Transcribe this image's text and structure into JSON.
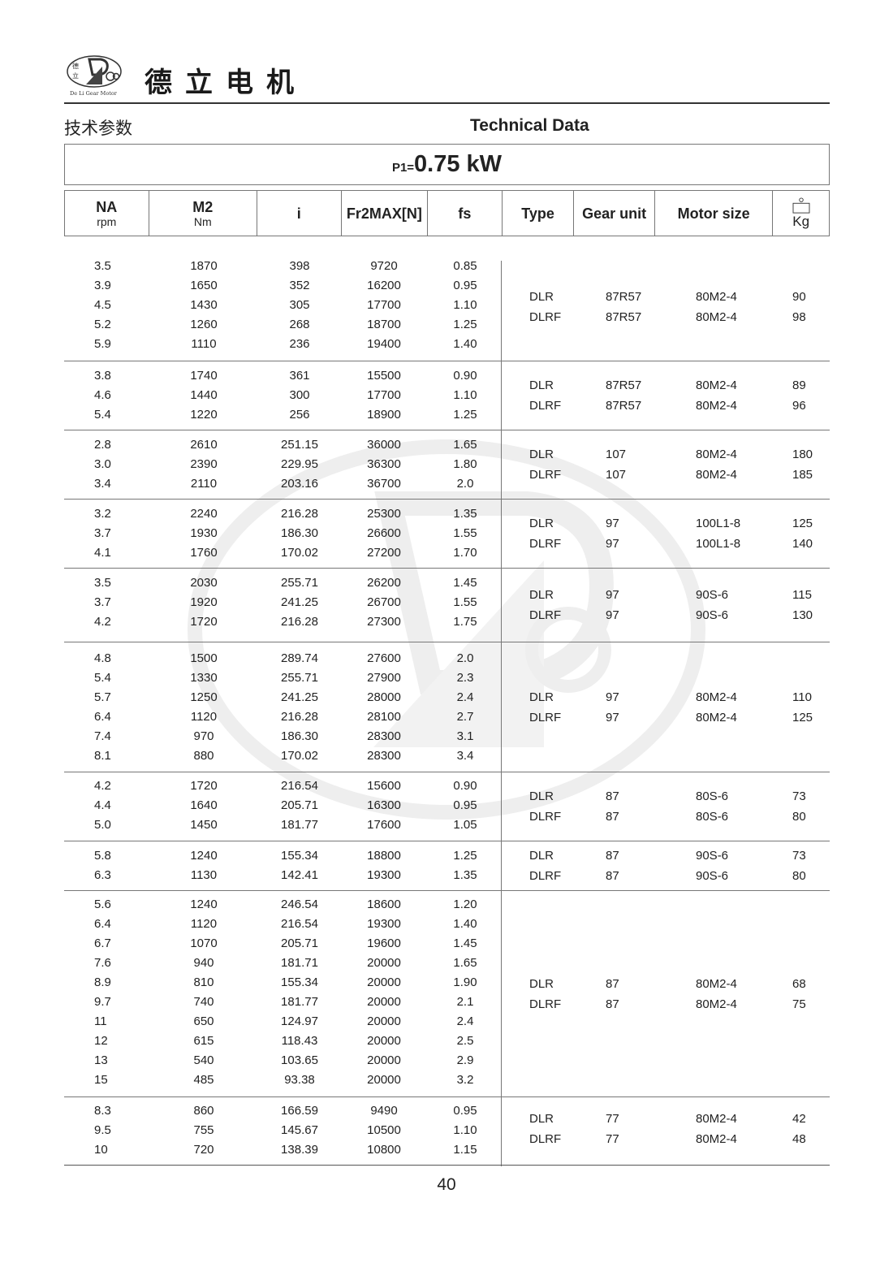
{
  "header": {
    "brand_cn": "德立电机",
    "logo_text": "De Li Gear Motor",
    "logo_chars": "德立"
  },
  "titles": {
    "cn": "技术参数",
    "en": "Technical Data"
  },
  "power": {
    "label": "P1=",
    "value": "0.75 kW"
  },
  "columns": {
    "na": "NA",
    "na_unit": "rpm",
    "m2": "M2",
    "m2_unit": "Nm",
    "i": "i",
    "fr": "Fr2MAX[N]",
    "fs": "fs",
    "type": "Type",
    "gear": "Gear unit",
    "motor": "Motor size",
    "kg": "Kg"
  },
  "groups": [
    {
      "rows": [
        [
          "3.5",
          "1870",
          "398",
          "9720",
          "0.85"
        ],
        [
          "3.9",
          "1650",
          "352",
          "16200",
          "0.95"
        ],
        [
          "4.5",
          "1430",
          "305",
          "17700",
          "1.10"
        ],
        [
          "5.2",
          "1260",
          "268",
          "18700",
          "1.25"
        ],
        [
          "5.9",
          "1110",
          "236",
          "19400",
          "1.40"
        ]
      ],
      "variants": [
        [
          "DLR",
          "87R57",
          "80M2-4",
          "90"
        ],
        [
          "DLRF",
          "87R57",
          "80M2-4",
          "98"
        ]
      ]
    },
    {
      "rows": [
        [
          "3.8",
          "1740",
          "361",
          "15500",
          "0.90"
        ],
        [
          "4.6",
          "1440",
          "300",
          "17700",
          "1.10"
        ],
        [
          "5.4",
          "1220",
          "256",
          "18900",
          "1.25"
        ]
      ],
      "variants": [
        [
          "DLR",
          "87R57",
          "80M2-4",
          "89"
        ],
        [
          "DLRF",
          "87R57",
          "80M2-4",
          "96"
        ]
      ]
    },
    {
      "rows": [
        [
          "2.8",
          "2610",
          "251.15",
          "36000",
          "1.65"
        ],
        [
          "3.0",
          "2390",
          "229.95",
          "36300",
          "1.80"
        ],
        [
          "3.4",
          "2110",
          "203.16",
          "36700",
          "2.0"
        ]
      ],
      "variants": [
        [
          "DLR",
          "107",
          "80M2-4",
          "180"
        ],
        [
          "DLRF",
          "107",
          "80M2-4",
          "185"
        ]
      ]
    },
    {
      "rows": [
        [
          "3.2",
          "2240",
          "216.28",
          "25300",
          "1.35"
        ],
        [
          "3.7",
          "1930",
          "186.30",
          "26600",
          "1.55"
        ],
        [
          "4.1",
          "1760",
          "170.02",
          "27200",
          "1.70"
        ]
      ],
      "variants": [
        [
          "DLR",
          "97",
          "100L1-8",
          "125"
        ],
        [
          "DLRF",
          "97",
          "100L1-8",
          "140"
        ]
      ]
    },
    {
      "rows": [
        [
          "3.5",
          "2030",
          "255.71",
          "26200",
          "1.45"
        ],
        [
          "3.7",
          "1920",
          "241.25",
          "26700",
          "1.55"
        ],
        [
          "4.2",
          "1720",
          "216.28",
          "27300",
          "1.75"
        ]
      ],
      "variants": [
        [
          "DLR",
          "97",
          "90S-6",
          "115"
        ],
        [
          "DLRF",
          "97",
          "90S-6",
          "130"
        ]
      ]
    },
    {
      "rows": [
        [
          "4.8",
          "1500",
          "289.74",
          "27600",
          "2.0"
        ],
        [
          "5.4",
          "1330",
          "255.71",
          "27900",
          "2.3"
        ],
        [
          "5.7",
          "1250",
          "241.25",
          "28000",
          "2.4"
        ],
        [
          "6.4",
          "1120",
          "216.28",
          "28100",
          "2.7"
        ],
        [
          "7.4",
          "970",
          "186.30",
          "28300",
          "3.1"
        ],
        [
          "8.1",
          "880",
          "170.02",
          "28300",
          "3.4"
        ]
      ],
      "variants": [
        [
          "DLR",
          "97",
          "80M2-4",
          "110"
        ],
        [
          "DLRF",
          "97",
          "80M2-4",
          "125"
        ]
      ]
    },
    {
      "rows": [
        [
          "4.2",
          "1720",
          "216.54",
          "15600",
          "0.90"
        ],
        [
          "4.4",
          "1640",
          "205.71",
          "16300",
          "0.95"
        ],
        [
          "5.0",
          "1450",
          "181.77",
          "17600",
          "1.05"
        ]
      ],
      "variants": [
        [
          "DLR",
          "87",
          "80S-6",
          "73"
        ],
        [
          "DLRF",
          "87",
          "80S-6",
          "80"
        ]
      ]
    },
    {
      "rows": [
        [
          "5.8",
          "1240",
          "155.34",
          "18800",
          "1.25"
        ],
        [
          "6.3",
          "1130",
          "142.41",
          "19300",
          "1.35"
        ]
      ],
      "variants": [
        [
          "DLR",
          "87",
          "90S-6",
          "73"
        ],
        [
          "DLRF",
          "87",
          "90S-6",
          "80"
        ]
      ]
    },
    {
      "rows": [
        [
          "5.6",
          "1240",
          "246.54",
          "18600",
          "1.20"
        ],
        [
          "6.4",
          "1120",
          "216.54",
          "19300",
          "1.40"
        ],
        [
          "6.7",
          "1070",
          "205.71",
          "19600",
          "1.45"
        ],
        [
          "7.6",
          "940",
          "181.71",
          "20000",
          "1.65"
        ],
        [
          "8.9",
          "810",
          "155.34",
          "20000",
          "1.90"
        ],
        [
          "9.7",
          "740",
          "181.77",
          "20000",
          "2.1"
        ],
        [
          "11",
          "650",
          "124.97",
          "20000",
          "2.4"
        ],
        [
          "12",
          "615",
          "118.43",
          "20000",
          "2.5"
        ],
        [
          "13",
          "540",
          "103.65",
          "20000",
          "2.9"
        ],
        [
          "15",
          "485",
          "93.38",
          "20000",
          "3.2"
        ]
      ],
      "variants": [
        [
          "DLR",
          "87",
          "80M2-4",
          "68"
        ],
        [
          "DLRF",
          "87",
          "80M2-4",
          "75"
        ]
      ]
    },
    {
      "rows": [
        [
          "8.3",
          "860",
          "166.59",
          "9490",
          "0.95"
        ],
        [
          "9.5",
          "755",
          "145.67",
          "10500",
          "1.10"
        ],
        [
          "10",
          "720",
          "138.39",
          "10800",
          "1.15"
        ]
      ],
      "variants": [
        [
          "DLR",
          "77",
          "80M2-4",
          "42"
        ],
        [
          "DLRF",
          "77",
          "80M2-4",
          "48"
        ]
      ]
    }
  ],
  "footer": {
    "page_number": "40"
  }
}
